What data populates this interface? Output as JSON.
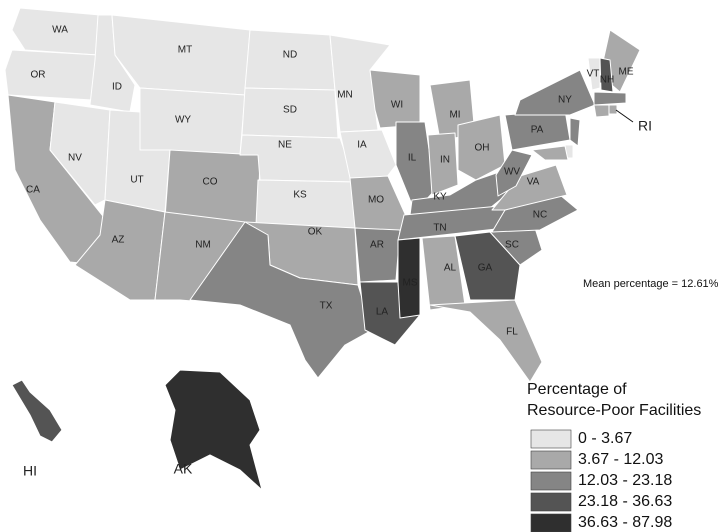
{
  "map": {
    "annotation": "Mean percentage = 12.61%",
    "legend": {
      "title": [
        "Percentage of",
        "Resource-Poor Facilities"
      ],
      "bins": [
        {
          "label": "0 - 3.67",
          "color": "#e6e6e6"
        },
        {
          "label": "3.67 - 12.03",
          "color": "#a9a9a9"
        },
        {
          "label": "12.03 - 23.18",
          "color": "#858585"
        },
        {
          "label": "23.18 - 36.63",
          "color": "#545454"
        },
        {
          "label": "36.63 - 87.98",
          "color": "#2f2f2f"
        }
      ]
    },
    "states": [
      {
        "label": "WA",
        "bin": 0
      },
      {
        "label": "OR",
        "bin": 0
      },
      {
        "label": "CA",
        "bin": 1
      },
      {
        "label": "NV",
        "bin": 0
      },
      {
        "label": "ID",
        "bin": 0
      },
      {
        "label": "MT",
        "bin": 0
      },
      {
        "label": "WY",
        "bin": 0
      },
      {
        "label": "UT",
        "bin": 0
      },
      {
        "label": "CO",
        "bin": 1
      },
      {
        "label": "AZ",
        "bin": 1
      },
      {
        "label": "NM",
        "bin": 1
      },
      {
        "label": "ND",
        "bin": 0
      },
      {
        "label": "SD",
        "bin": 0
      },
      {
        "label": "NE",
        "bin": 0
      },
      {
        "label": "KS",
        "bin": 0
      },
      {
        "label": "OK",
        "bin": 1
      },
      {
        "label": "TX",
        "bin": 2
      },
      {
        "label": "MN",
        "bin": 0
      },
      {
        "label": "IA",
        "bin": 0
      },
      {
        "label": "MO",
        "bin": 1
      },
      {
        "label": "AR",
        "bin": 2
      },
      {
        "label": "LA",
        "bin": 3
      },
      {
        "label": "WI",
        "bin": 1
      },
      {
        "label": "IL",
        "bin": 2
      },
      {
        "label": "MI",
        "bin": 1
      },
      {
        "label": "IN",
        "bin": 1
      },
      {
        "label": "OH",
        "bin": 1
      },
      {
        "label": "KY",
        "bin": 2
      },
      {
        "label": "TN",
        "bin": 2
      },
      {
        "label": "MS",
        "bin": 4
      },
      {
        "label": "AL",
        "bin": 1
      },
      {
        "label": "GA",
        "bin": 3
      },
      {
        "label": "FL",
        "bin": 1
      },
      {
        "label": "SC",
        "bin": 2
      },
      {
        "label": "NC",
        "bin": 2
      },
      {
        "label": "VA",
        "bin": 1
      },
      {
        "label": "WV",
        "bin": 2
      },
      {
        "label": "PA",
        "bin": 2
      },
      {
        "label": "NY",
        "bin": 2
      },
      {
        "label": "ME",
        "bin": 1
      },
      {
        "label": "VT",
        "bin": 0
      },
      {
        "label": "NH",
        "bin": 3
      },
      {
        "bin": 2
      },
      {
        "bin": 1
      },
      {
        "label": "RI",
        "bin": 1
      },
      {
        "bin": 2
      },
      {
        "bin": 0
      },
      {
        "bin": 1
      },
      {
        "label": "HI",
        "bin": 3
      },
      {
        "label": "AK",
        "bin": 4
      }
    ]
  }
}
